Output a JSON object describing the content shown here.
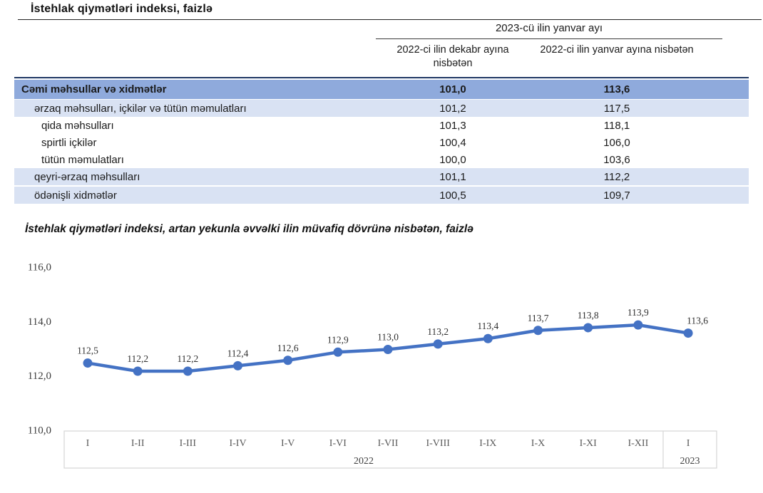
{
  "page": {
    "title": "İstehlak qiymətləri indeksi, faizlə"
  },
  "table": {
    "group_header": "2023-cü ilin yanvar ayı",
    "col_headers": [
      "2022-ci ilin dekabr ayına nisbətən",
      "2022-ci ilin yanvar ayına nisbətən"
    ],
    "rows": [
      {
        "label": "Cəmi məhsullar və xidmətlər",
        "values": [
          "101,0",
          "113,6"
        ],
        "style": "total",
        "indent": 0
      },
      {
        "label": "ərzaq məhsulları, içkilər və tütün məmulatları",
        "values": [
          "101,2",
          "117,5"
        ],
        "style": "band",
        "indent": 1
      },
      {
        "label": "qida məhsulları",
        "values": [
          "101,3",
          "118,1"
        ],
        "style": "plain",
        "indent": 2
      },
      {
        "label": "spirtli içkilər",
        "values": [
          "100,4",
          "106,0"
        ],
        "style": "plain",
        "indent": 2
      },
      {
        "label": "tütün məmulatları",
        "values": [
          "100,0",
          "103,6"
        ],
        "style": "plain",
        "indent": 2
      },
      {
        "label": "qeyri-ərzaq məhsulları",
        "values": [
          "101,1",
          "112,2"
        ],
        "style": "band",
        "indent": 1
      },
      {
        "label": "ödənişli xidmətlər",
        "values": [
          "100,5",
          "109,7"
        ],
        "style": "band",
        "indent": 1
      }
    ]
  },
  "chart_data": {
    "type": "line",
    "title": "İstehlak qiymətləri indeksi, artan yekunla əvvəlki ilin müvafiq dövrünə nisbətən, faizlə",
    "categories": [
      "I",
      "I-II",
      "I-III",
      "I-IV",
      "I-V",
      "I-VI",
      "I-VII",
      "I-VIII",
      "I-IX",
      "I-X",
      "I-XI",
      "I-XII",
      "I"
    ],
    "year_groups": [
      {
        "label": "2022",
        "span": 12
      },
      {
        "label": "2023",
        "span": 1
      }
    ],
    "values": [
      112.5,
      112.2,
      112.2,
      112.4,
      112.6,
      112.9,
      113.0,
      113.2,
      113.4,
      113.7,
      113.8,
      113.9,
      113.6
    ],
    "value_labels": [
      "112,5",
      "112,2",
      "112,2",
      "112,4",
      "112,6",
      "112,9",
      "113,0",
      "113,2",
      "113,4",
      "113,7",
      "113,8",
      "113,9",
      "113,6"
    ],
    "xlabel": "",
    "ylabel": "",
    "ylim": [
      110,
      116
    ],
    "ytick_values": [
      110,
      112,
      114,
      116
    ],
    "yticks": [
      "110,0",
      "112,0",
      "114,0",
      "116,0"
    ],
    "grid": false,
    "legend": "none"
  },
  "colors": {
    "accent": "#4472C4",
    "table_header_bg": "#8FAADC",
    "band_bg": "#D9E2F3",
    "navy_rule": "#1F3864",
    "axis_box_border": "#D6D6D6"
  }
}
